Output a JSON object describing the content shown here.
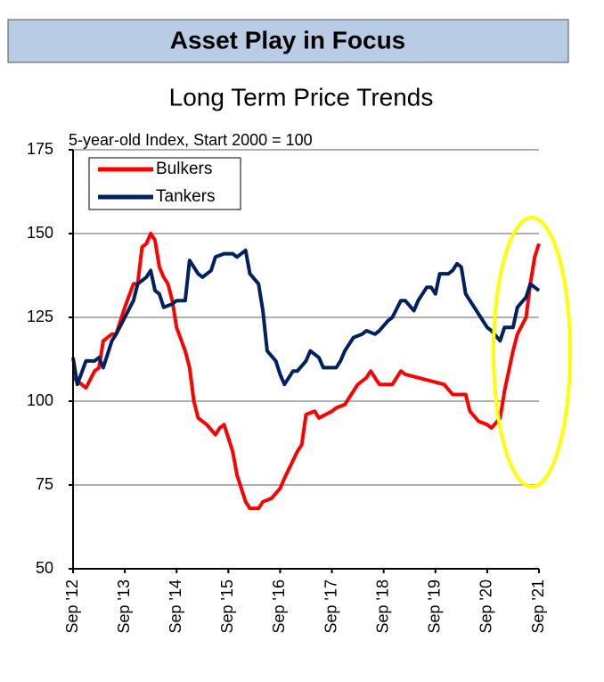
{
  "header": {
    "title": "Asset Play in Focus"
  },
  "chart_data": {
    "type": "line",
    "title": "Long Term Price Trends",
    "ylabel": "5-year-old Index, Start 2000 = 100",
    "xlim": [
      0,
      108
    ],
    "ylim": [
      50,
      175
    ],
    "xticks": [
      {
        "value": 0,
        "label": "Sep '12"
      },
      {
        "value": 12,
        "label": "Sep '13"
      },
      {
        "value": 24,
        "label": "Sep '14"
      },
      {
        "value": 36,
        "label": "Sep '15"
      },
      {
        "value": 48,
        "label": "Sep '16"
      },
      {
        "value": 60,
        "label": "Sep '17"
      },
      {
        "value": 72,
        "label": "Sep '18"
      },
      {
        "value": 84,
        "label": "Sep '19"
      },
      {
        "value": 96,
        "label": "Sep '20"
      },
      {
        "value": 108,
        "label": "Sep '21"
      }
    ],
    "yticks": [
      50,
      75,
      100,
      125,
      150,
      175
    ],
    "grid": true,
    "legend": "upper-left",
    "series": [
      {
        "name": "Bulkers",
        "color": "#ff0000",
        "x": [
          0,
          3,
          5,
          6,
          7,
          9,
          10,
          12,
          14,
          15,
          16,
          17,
          18,
          19,
          20,
          21,
          22,
          23,
          24,
          26,
          27,
          28,
          29,
          31,
          33,
          34,
          35,
          37,
          38,
          40,
          41,
          43,
          44,
          46,
          48,
          49,
          52,
          53,
          54,
          56,
          57,
          60,
          61,
          63,
          64,
          66,
          68,
          69,
          71,
          74,
          76,
          77,
          80,
          83,
          86,
          88,
          91,
          92,
          94,
          96,
          97,
          99,
          100,
          102,
          103,
          105,
          106,
          107,
          108
        ],
        "values": [
          107,
          104,
          109,
          110,
          118,
          120,
          120,
          128,
          135,
          135,
          146,
          147,
          150,
          148,
          140,
          137,
          135,
          130,
          122,
          115,
          110,
          100,
          95,
          93,
          90,
          92,
          93,
          85,
          78,
          70,
          68,
          68,
          70,
          71,
          74,
          77,
          85,
          87,
          96,
          97,
          95,
          97,
          98,
          99,
          101,
          105,
          107,
          109,
          105,
          105,
          109,
          108,
          107,
          106,
          105,
          102,
          102,
          97,
          94,
          93,
          92,
          95,
          103,
          115,
          120,
          125,
          135,
          143,
          147
        ]
      },
      {
        "name": "Tankers",
        "color": "#002060",
        "x": [
          0,
          1,
          3,
          5,
          6,
          7,
          9,
          10,
          12,
          14,
          15,
          17,
          18,
          19,
          20,
          21,
          23,
          24,
          26,
          27,
          29,
          30,
          32,
          33,
          35,
          37,
          38,
          40,
          41,
          43,
          44,
          45,
          47,
          48,
          49,
          51,
          52,
          54,
          55,
          57,
          58,
          60,
          61,
          62,
          63,
          64,
          65,
          67,
          68,
          70,
          71,
          73,
          74,
          76,
          77,
          79,
          80,
          82,
          83,
          84,
          85,
          87,
          88,
          89,
          90,
          91,
          93,
          94,
          96,
          97,
          99,
          100,
          102,
          103,
          105,
          106,
          108
        ],
        "values": [
          113,
          105,
          112,
          112,
          113,
          110,
          118,
          120,
          125,
          130,
          135,
          137,
          139,
          133,
          132,
          128,
          129,
          130,
          130,
          142,
          138,
          137,
          139,
          143,
          144,
          144,
          143,
          145,
          138,
          135,
          127,
          115,
          112,
          108,
          105,
          109,
          109,
          112,
          115,
          113,
          110,
          110,
          110,
          112,
          115,
          117,
          119,
          120,
          121,
          120,
          121,
          124,
          125,
          130,
          130,
          127,
          130,
          134,
          134,
          132,
          138,
          138,
          139,
          141,
          140,
          132,
          128,
          126,
          122,
          121,
          118,
          122,
          122,
          128,
          131,
          135,
          133
        ]
      }
    ]
  }
}
